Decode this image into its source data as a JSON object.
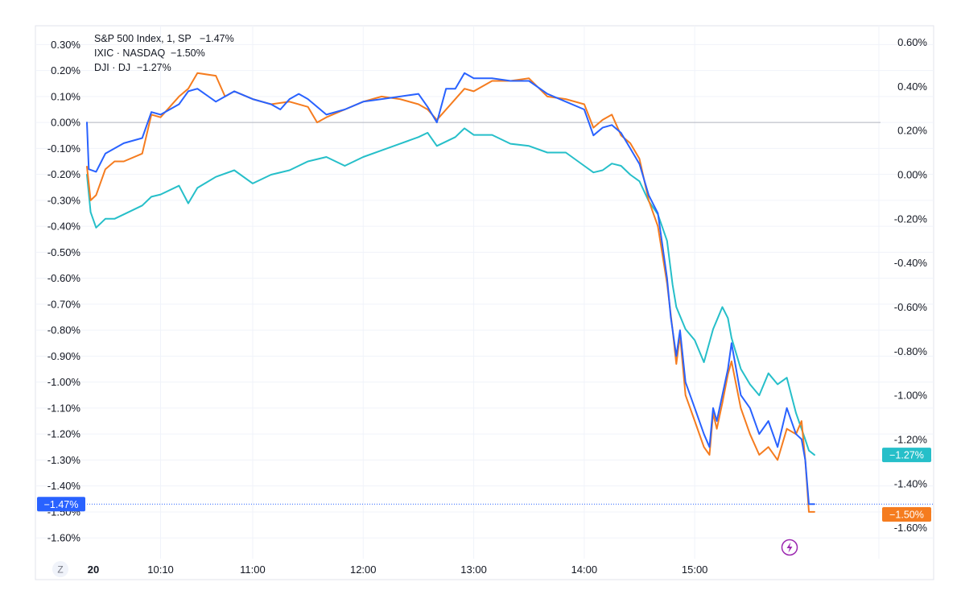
{
  "chart_data": {
    "type": "line",
    "date_label": "20",
    "x_ticks": [
      {
        "label": "10:10",
        "t": "10:10"
      },
      {
        "label": "11:00",
        "t": "11:00"
      },
      {
        "label": "12:00",
        "t": "12:00"
      },
      {
        "label": "13:00",
        "t": "13:00"
      },
      {
        "label": "14:00",
        "t": "14:00"
      },
      {
        "label": "15:00",
        "t": "15:00"
      }
    ],
    "x_range": [
      "09:30",
      "16:40"
    ],
    "left_axis": {
      "ylim": [
        -1.68,
        0.36
      ],
      "ticks": [
        "0.30%",
        "0.20%",
        "0.10%",
        "0.00%",
        "-0.10%",
        "-0.20%",
        "-0.30%",
        "-0.40%",
        "-0.50%",
        "-0.60%",
        "-0.70%",
        "-0.80%",
        "-0.90%",
        "-1.00%",
        "-1.10%",
        "-1.20%",
        "-1.30%",
        "-1.40%",
        "-1.50%",
        "-1.60%"
      ],
      "tick_values": [
        0.3,
        0.2,
        0.1,
        0.0,
        -0.1,
        -0.2,
        -0.3,
        -0.4,
        -0.5,
        -0.6,
        -0.7,
        -0.8,
        -0.9,
        -1.0,
        -1.1,
        -1.2,
        -1.3,
        -1.4,
        -1.5,
        -1.6
      ]
    },
    "right_axis": {
      "ylim": [
        -1.74,
        0.66
      ],
      "ticks": [
        "0.60%",
        "0.40%",
        "0.20%",
        "0.00%",
        "-0.20%",
        "-0.40%",
        "-0.60%",
        "-0.80%",
        "-1.00%",
        "-1.20%",
        "-1.40%",
        "-1.60%"
      ],
      "tick_values": [
        0.6,
        0.4,
        0.2,
        0.0,
        -0.2,
        -0.4,
        -0.6,
        -0.8,
        -1.0,
        -1.2,
        -1.4,
        -1.6
      ]
    },
    "zero_line": 0.0,
    "grid": true,
    "legend_position": "top-left",
    "series": [
      {
        "name": "S&P 500 Index, 1, SP",
        "value_label": "−1.47%",
        "axis": "left",
        "color": "#2962ff",
        "points": [
          [
            "09:30",
            0.0
          ],
          [
            "09:31",
            -0.18
          ],
          [
            "09:35",
            -0.19
          ],
          [
            "09:40",
            -0.12
          ],
          [
            "09:50",
            -0.08
          ],
          [
            "10:00",
            -0.06
          ],
          [
            "10:05",
            0.04
          ],
          [
            "10:10",
            0.03
          ],
          [
            "10:20",
            0.07
          ],
          [
            "10:25",
            0.12
          ],
          [
            "10:30",
            0.13
          ],
          [
            "10:40",
            0.08
          ],
          [
            "10:50",
            0.12
          ],
          [
            "11:00",
            0.09
          ],
          [
            "11:10",
            0.07
          ],
          [
            "11:15",
            0.05
          ],
          [
            "11:20",
            0.09
          ],
          [
            "11:25",
            0.11
          ],
          [
            "11:30",
            0.09
          ],
          [
            "11:40",
            0.03
          ],
          [
            "11:50",
            0.05
          ],
          [
            "12:00",
            0.08
          ],
          [
            "12:10",
            0.09
          ],
          [
            "12:20",
            0.1
          ],
          [
            "12:30",
            0.11
          ],
          [
            "12:35",
            0.06
          ],
          [
            "12:40",
            0.0
          ],
          [
            "12:45",
            0.13
          ],
          [
            "12:50",
            0.13
          ],
          [
            "12:55",
            0.19
          ],
          [
            "13:00",
            0.17
          ],
          [
            "13:10",
            0.17
          ],
          [
            "13:20",
            0.16
          ],
          [
            "13:30",
            0.16
          ],
          [
            "13:40",
            0.11
          ],
          [
            "13:50",
            0.08
          ],
          [
            "14:00",
            0.05
          ],
          [
            "14:05",
            -0.05
          ],
          [
            "14:10",
            -0.02
          ],
          [
            "14:15",
            -0.01
          ],
          [
            "14:20",
            -0.04
          ],
          [
            "14:25",
            -0.1
          ],
          [
            "14:30",
            -0.16
          ],
          [
            "14:35",
            -0.28
          ],
          [
            "14:40",
            -0.35
          ],
          [
            "14:45",
            -0.6
          ],
          [
            "14:47",
            -0.75
          ],
          [
            "14:50",
            -0.9
          ],
          [
            "14:52",
            -0.8
          ],
          [
            "14:55",
            -1.0
          ],
          [
            "15:00",
            -1.1
          ],
          [
            "15:05",
            -1.2
          ],
          [
            "15:08",
            -1.25
          ],
          [
            "15:10",
            -1.1
          ],
          [
            "15:12",
            -1.15
          ],
          [
            "15:15",
            -1.05
          ],
          [
            "15:18",
            -0.95
          ],
          [
            "15:20",
            -0.85
          ],
          [
            "15:25",
            -1.05
          ],
          [
            "15:30",
            -1.1
          ],
          [
            "15:35",
            -1.2
          ],
          [
            "15:40",
            -1.15
          ],
          [
            "15:45",
            -1.25
          ],
          [
            "15:50",
            -1.1
          ],
          [
            "15:55",
            -1.2
          ],
          [
            "15:58",
            -1.22
          ],
          [
            "16:00",
            -1.3
          ],
          [
            "16:02",
            -1.47
          ],
          [
            "16:05",
            -1.47
          ]
        ]
      },
      {
        "name": "IXIC · NASDAQ",
        "value_label": "−1.50%",
        "axis": "left",
        "color": "#f57c1f",
        "points": [
          [
            "09:30",
            -0.17
          ],
          [
            "09:32",
            -0.3
          ],
          [
            "09:35",
            -0.28
          ],
          [
            "09:40",
            -0.18
          ],
          [
            "09:45",
            -0.15
          ],
          [
            "09:50",
            -0.15
          ],
          [
            "10:00",
            -0.12
          ],
          [
            "10:05",
            0.03
          ],
          [
            "10:10",
            0.02
          ],
          [
            "10:20",
            0.1
          ],
          [
            "10:25",
            0.13
          ],
          [
            "10:30",
            0.19
          ],
          [
            "10:40",
            0.18
          ],
          [
            "10:45",
            0.1
          ],
          [
            "10:50",
            0.12
          ],
          [
            "11:00",
            0.09
          ],
          [
            "11:10",
            0.07
          ],
          [
            "11:20",
            0.08
          ],
          [
            "11:30",
            0.06
          ],
          [
            "11:35",
            0.0
          ],
          [
            "11:40",
            0.02
          ],
          [
            "11:50",
            0.05
          ],
          [
            "12:00",
            0.08
          ],
          [
            "12:10",
            0.1
          ],
          [
            "12:20",
            0.09
          ],
          [
            "12:30",
            0.07
          ],
          [
            "12:35",
            0.05
          ],
          [
            "12:40",
            0.01
          ],
          [
            "12:50",
            0.09
          ],
          [
            "12:55",
            0.13
          ],
          [
            "13:00",
            0.12
          ],
          [
            "13:10",
            0.16
          ],
          [
            "13:20",
            0.16
          ],
          [
            "13:30",
            0.17
          ],
          [
            "13:40",
            0.1
          ],
          [
            "13:50",
            0.09
          ],
          [
            "14:00",
            0.07
          ],
          [
            "14:05",
            -0.02
          ],
          [
            "14:10",
            0.01
          ],
          [
            "14:15",
            0.03
          ],
          [
            "14:20",
            -0.05
          ],
          [
            "14:25",
            -0.08
          ],
          [
            "14:30",
            -0.14
          ],
          [
            "14:35",
            -0.3
          ],
          [
            "14:40",
            -0.4
          ],
          [
            "14:45",
            -0.62
          ],
          [
            "14:48",
            -0.8
          ],
          [
            "14:50",
            -0.93
          ],
          [
            "14:52",
            -0.82
          ],
          [
            "14:55",
            -1.05
          ],
          [
            "15:00",
            -1.15
          ],
          [
            "15:05",
            -1.25
          ],
          [
            "15:08",
            -1.28
          ],
          [
            "15:10",
            -1.12
          ],
          [
            "15:12",
            -1.18
          ],
          [
            "15:15",
            -1.08
          ],
          [
            "15:18",
            -0.97
          ],
          [
            "15:20",
            -0.92
          ],
          [
            "15:25",
            -1.1
          ],
          [
            "15:30",
            -1.2
          ],
          [
            "15:35",
            -1.28
          ],
          [
            "15:40",
            -1.25
          ],
          [
            "15:45",
            -1.3
          ],
          [
            "15:50",
            -1.18
          ],
          [
            "15:55",
            -1.2
          ],
          [
            "15:58",
            -1.15
          ],
          [
            "16:00",
            -1.3
          ],
          [
            "16:02",
            -1.5
          ],
          [
            "16:05",
            -1.5
          ]
        ]
      },
      {
        "name": "DJI · DJ",
        "value_label": "−1.27%",
        "axis": "right",
        "color": "#26bfc9",
        "points": [
          [
            "09:30",
            -0.0
          ],
          [
            "09:32",
            -0.17
          ],
          [
            "09:35",
            -0.24
          ],
          [
            "09:40",
            -0.2
          ],
          [
            "09:45",
            -0.2
          ],
          [
            "09:50",
            -0.18
          ],
          [
            "10:00",
            -0.14
          ],
          [
            "10:05",
            -0.1
          ],
          [
            "10:10",
            -0.09
          ],
          [
            "10:20",
            -0.05
          ],
          [
            "10:25",
            -0.13
          ],
          [
            "10:30",
            -0.06
          ],
          [
            "10:40",
            -0.01
          ],
          [
            "10:50",
            0.02
          ],
          [
            "11:00",
            -0.04
          ],
          [
            "11:10",
            0.0
          ],
          [
            "11:20",
            0.02
          ],
          [
            "11:30",
            0.06
          ],
          [
            "11:40",
            0.08
          ],
          [
            "11:50",
            0.04
          ],
          [
            "12:00",
            0.08
          ],
          [
            "12:10",
            0.11
          ],
          [
            "12:20",
            0.14
          ],
          [
            "12:30",
            0.17
          ],
          [
            "12:35",
            0.19
          ],
          [
            "12:40",
            0.13
          ],
          [
            "12:50",
            0.17
          ],
          [
            "12:55",
            0.21
          ],
          [
            "13:00",
            0.18
          ],
          [
            "13:10",
            0.18
          ],
          [
            "13:20",
            0.14
          ],
          [
            "13:30",
            0.13
          ],
          [
            "13:40",
            0.1
          ],
          [
            "13:50",
            0.1
          ],
          [
            "14:00",
            0.04
          ],
          [
            "14:05",
            0.01
          ],
          [
            "14:10",
            0.02
          ],
          [
            "14:15",
            0.05
          ],
          [
            "14:20",
            0.04
          ],
          [
            "14:25",
            0.0
          ],
          [
            "14:30",
            -0.03
          ],
          [
            "14:35",
            -0.12
          ],
          [
            "14:40",
            -0.18
          ],
          [
            "14:45",
            -0.3
          ],
          [
            "14:48",
            -0.5
          ],
          [
            "14:50",
            -0.6
          ],
          [
            "14:55",
            -0.7
          ],
          [
            "15:00",
            -0.75
          ],
          [
            "15:05",
            -0.85
          ],
          [
            "15:10",
            -0.7
          ],
          [
            "15:15",
            -0.6
          ],
          [
            "15:18",
            -0.65
          ],
          [
            "15:20",
            -0.74
          ],
          [
            "15:25",
            -0.88
          ],
          [
            "15:30",
            -0.95
          ],
          [
            "15:35",
            -1.0
          ],
          [
            "15:40",
            -0.9
          ],
          [
            "15:45",
            -0.95
          ],
          [
            "15:50",
            -0.92
          ],
          [
            "15:55",
            -1.08
          ],
          [
            "16:00",
            -1.2
          ],
          [
            "16:02",
            -1.25
          ],
          [
            "16:05",
            -1.27
          ]
        ]
      }
    ]
  },
  "badges": {
    "left_label": "−1.47%",
    "right_top_label": "−1.27%",
    "right_bottom_label": "−1.50%"
  },
  "controls": {
    "zoom_button": "Z"
  },
  "colors": {
    "blue": "#2962ff",
    "orange": "#f57c1f",
    "teal": "#26bfc9",
    "grid": "#f0f3fa",
    "zero_line": "#b2b5be",
    "event_icon": "#9c27b0"
  }
}
